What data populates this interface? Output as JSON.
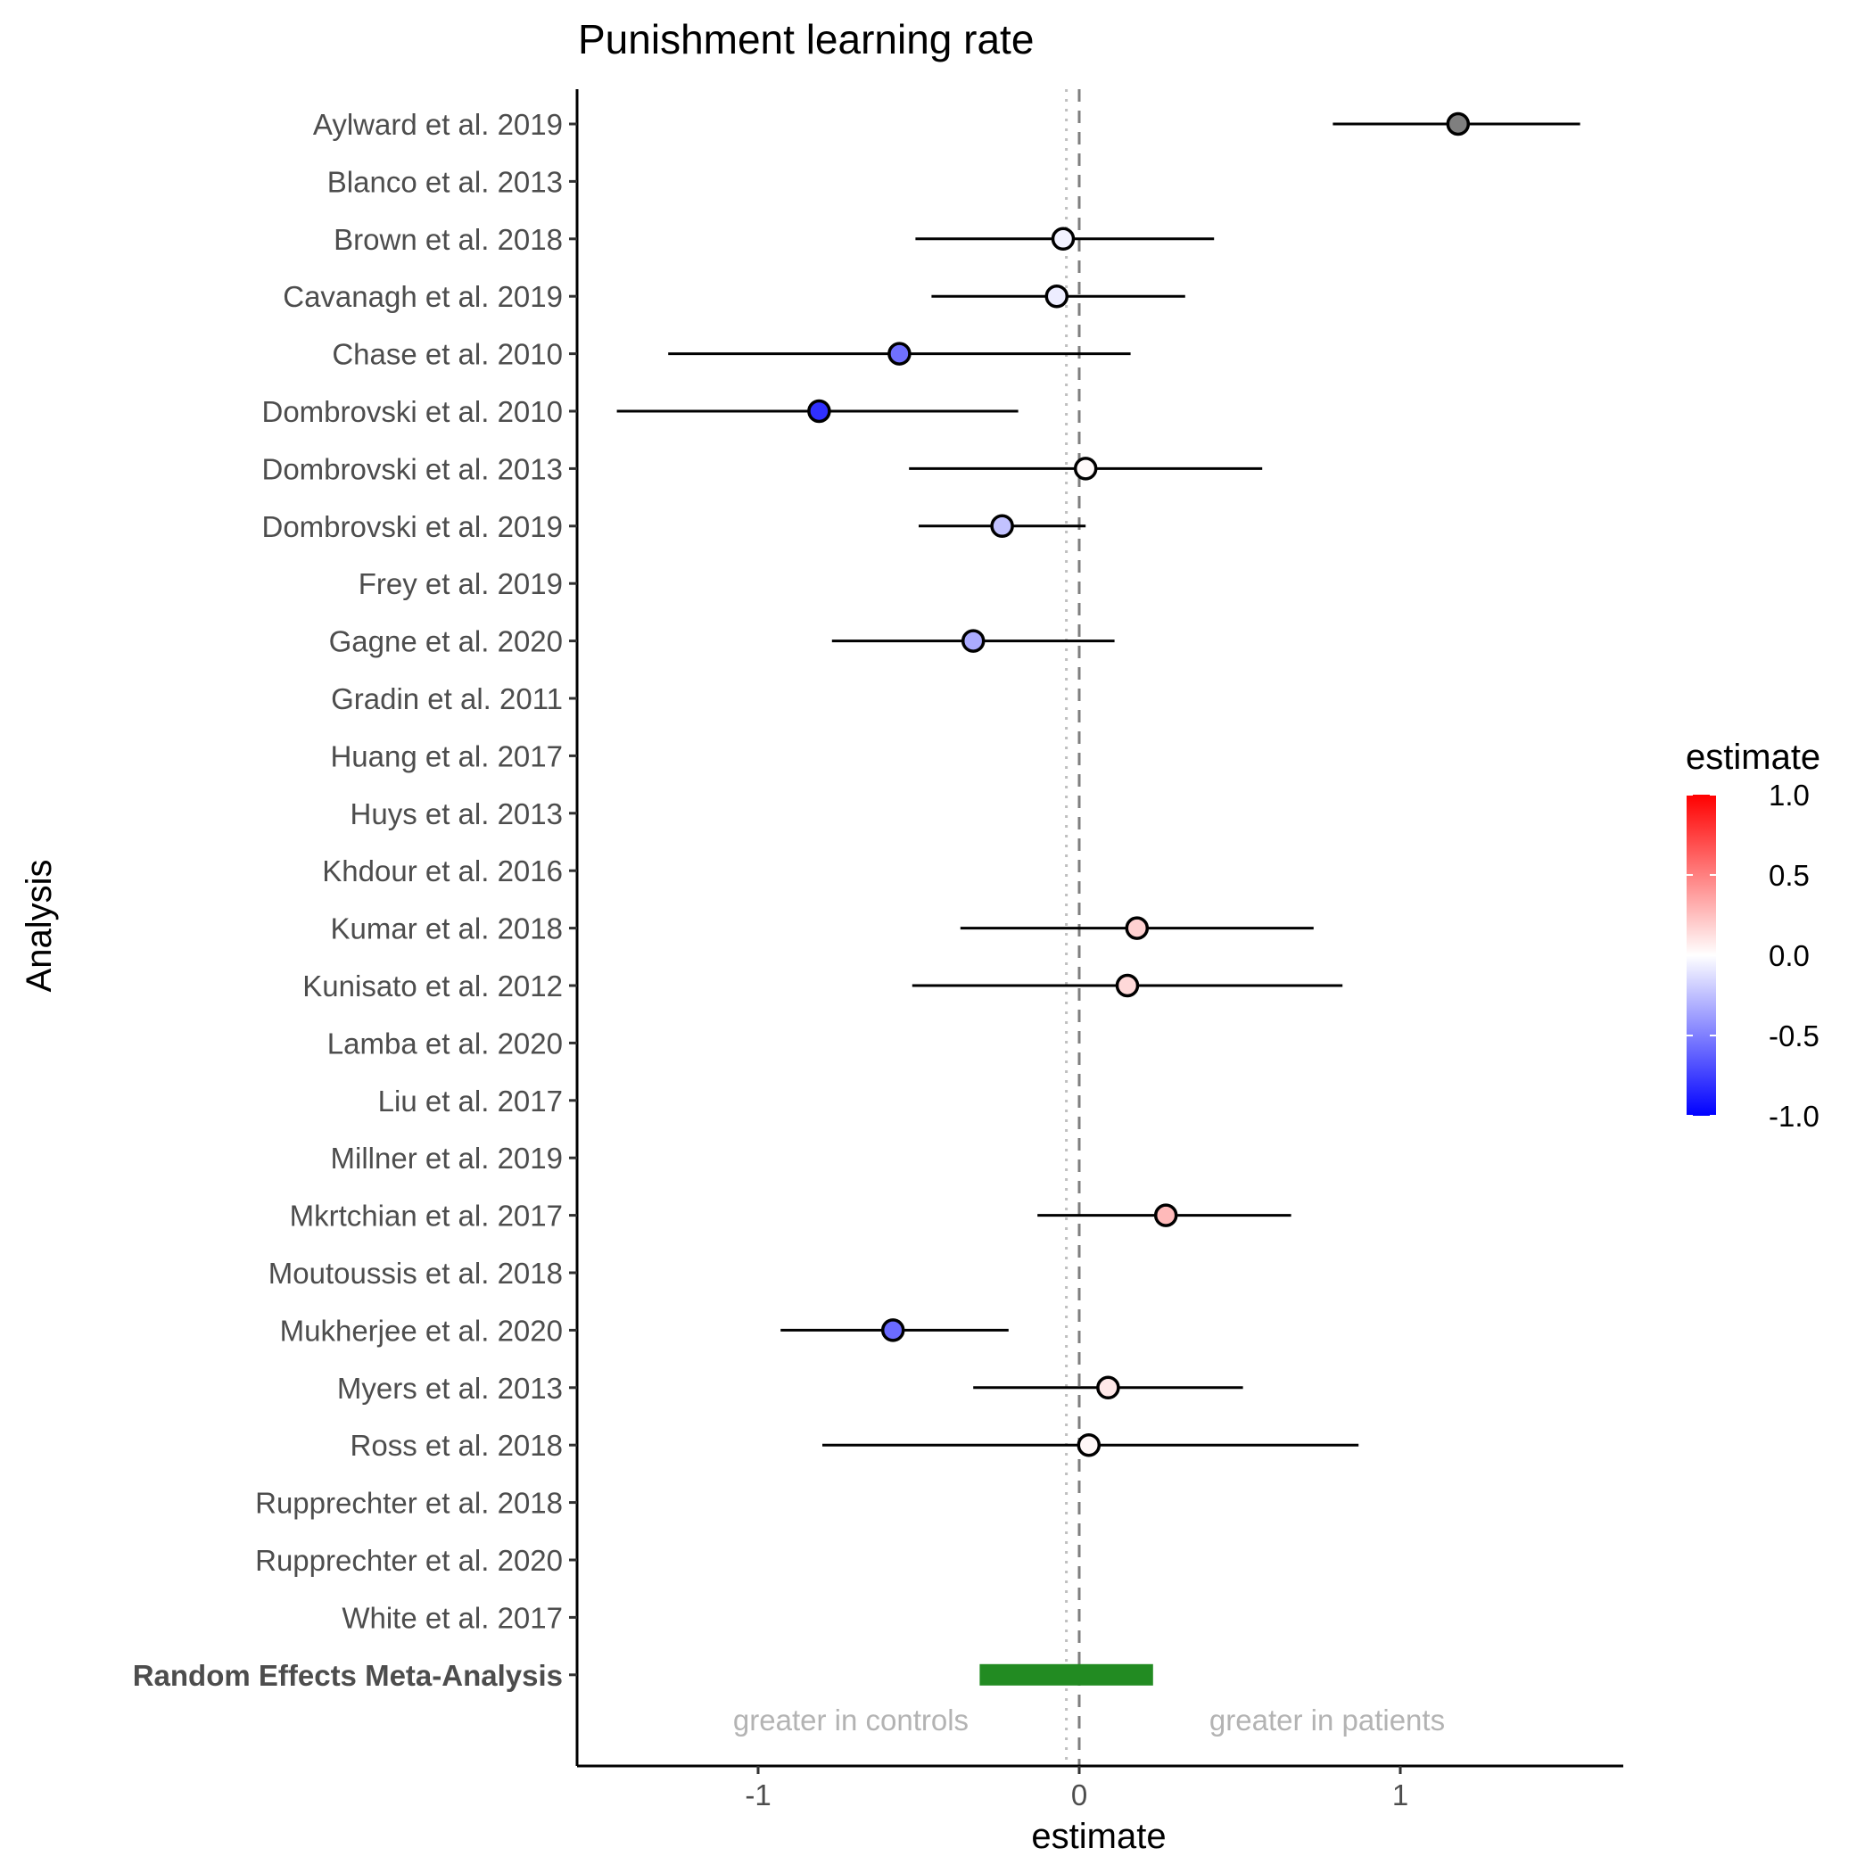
{
  "chart_data": {
    "type": "forest",
    "title": "Punishment learning rate",
    "xlabel": "estimate",
    "ylabel": "Analysis",
    "xlim": [
      -1.58,
      1.72
    ],
    "xticks": [
      -1,
      0,
      1
    ],
    "xtick_labels": [
      "-1",
      "0",
      "1"
    ],
    "annotations": {
      "left": "greater in controls",
      "right": "greater in patients"
    },
    "reference_lines": [
      {
        "x": 0,
        "style": "dashed",
        "color": "#7f7f7f"
      },
      {
        "x": -0.04,
        "style": "dotted",
        "color": "#bfbfbf"
      }
    ],
    "legend": {
      "title": "estimate",
      "position": "right",
      "colors": {
        "low": "#0000ff",
        "mid": "#ffffff",
        "high": "#ff0000"
      },
      "range": [
        -1,
        1
      ],
      "ticks": [
        "1.0",
        "0.5",
        "0.0",
        "-0.5",
        "-1.0"
      ],
      "tick_values": [
        1,
        0.5,
        0,
        -0.5,
        -1
      ]
    },
    "out_of_range_color": "#7f7f7f",
    "studies": [
      {
        "label": "Aylward et al. 2019",
        "estimate": 1.18,
        "lower": 0.79,
        "upper": 1.56
      },
      {
        "label": "Blanco et al. 2013",
        "estimate": null,
        "lower": null,
        "upper": null
      },
      {
        "label": "Brown et al. 2018",
        "estimate": -0.05,
        "lower": -0.51,
        "upper": 0.42
      },
      {
        "label": "Cavanagh et al. 2019",
        "estimate": -0.07,
        "lower": -0.46,
        "upper": 0.33
      },
      {
        "label": "Chase et al. 2010",
        "estimate": -0.56,
        "lower": -1.28,
        "upper": 0.16
      },
      {
        "label": "Dombrovski et al. 2010",
        "estimate": -0.81,
        "lower": -1.44,
        "upper": -0.19
      },
      {
        "label": "Dombrovski et al. 2013",
        "estimate": 0.02,
        "lower": -0.53,
        "upper": 0.57
      },
      {
        "label": "Dombrovski et al. 2019",
        "estimate": -0.24,
        "lower": -0.5,
        "upper": 0.02
      },
      {
        "label": "Frey et al. 2019",
        "estimate": null,
        "lower": null,
        "upper": null
      },
      {
        "label": "Gagne et al. 2020",
        "estimate": -0.33,
        "lower": -0.77,
        "upper": 0.11
      },
      {
        "label": "Gradin et al. 2011",
        "estimate": null,
        "lower": null,
        "upper": null
      },
      {
        "label": "Huang et al. 2017",
        "estimate": null,
        "lower": null,
        "upper": null
      },
      {
        "label": "Huys et al. 2013",
        "estimate": null,
        "lower": null,
        "upper": null
      },
      {
        "label": "Khdour et al. 2016",
        "estimate": null,
        "lower": null,
        "upper": null
      },
      {
        "label": "Kumar et al. 2018",
        "estimate": 0.18,
        "lower": -0.37,
        "upper": 0.73
      },
      {
        "label": "Kunisato et al. 2012",
        "estimate": 0.15,
        "lower": -0.52,
        "upper": 0.82
      },
      {
        "label": "Lamba et al. 2020",
        "estimate": null,
        "lower": null,
        "upper": null
      },
      {
        "label": "Liu et al. 2017",
        "estimate": null,
        "lower": null,
        "upper": null
      },
      {
        "label": "Millner et al. 2019",
        "estimate": null,
        "lower": null,
        "upper": null
      },
      {
        "label": "Mkrtchian et al. 2017",
        "estimate": 0.27,
        "lower": -0.13,
        "upper": 0.66
      },
      {
        "label": "Moutoussis et al. 2018",
        "estimate": null,
        "lower": null,
        "upper": null
      },
      {
        "label": "Mukherjee et al. 2020",
        "estimate": -0.58,
        "lower": -0.93,
        "upper": -0.22
      },
      {
        "label": "Myers et al. 2013",
        "estimate": 0.09,
        "lower": -0.33,
        "upper": 0.51
      },
      {
        "label": "Ross et al. 2018",
        "estimate": 0.03,
        "lower": -0.8,
        "upper": 0.87
      },
      {
        "label": "Rupprechter et al. 2018",
        "estimate": null,
        "lower": null,
        "upper": null
      },
      {
        "label": "Rupprechter et al. 2020",
        "estimate": null,
        "lower": null,
        "upper": null
      },
      {
        "label": "White et al. 2017",
        "estimate": null,
        "lower": null,
        "upper": null
      }
    ],
    "meta_analysis": {
      "label": "Random Effects Meta-Analysis",
      "lower": -0.31,
      "upper": 0.23,
      "color": "#228b22"
    }
  }
}
